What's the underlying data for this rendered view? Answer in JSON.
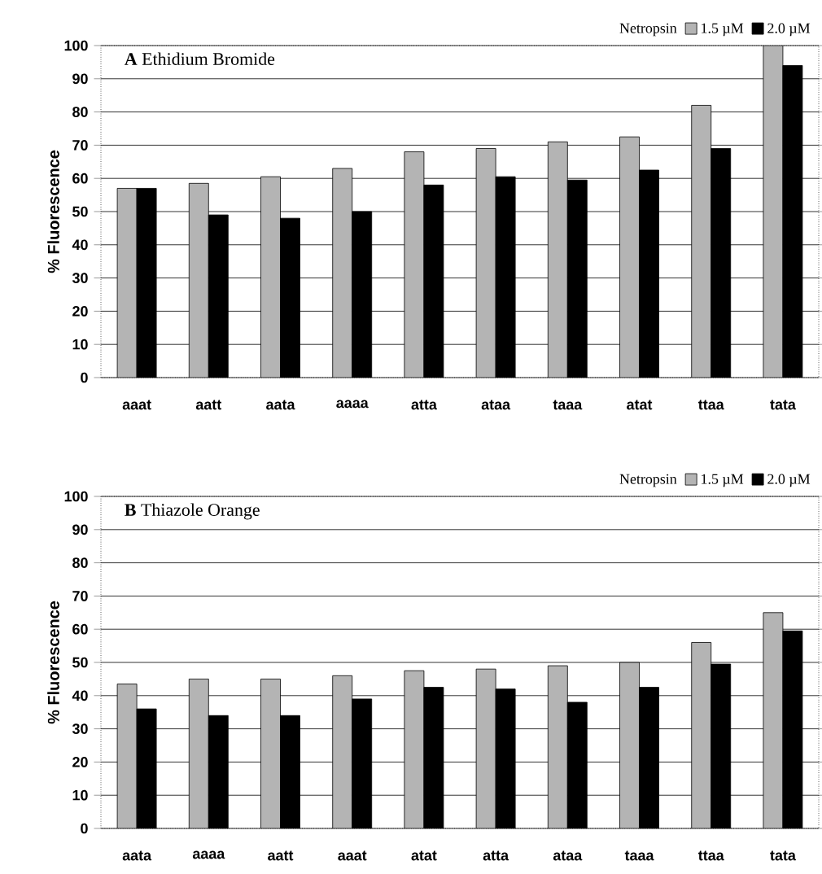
{
  "chart_data": [
    {
      "type": "bar",
      "title": "**A**   Ethidium Bromide",
      "ylabel": "% Fluorescence",
      "legend_title": "Netropsin",
      "legend": "top right",
      "grid": "y",
      "categories": [
        "aaat",
        "aatt",
        "aata",
        "aaaa",
        "atta",
        "ataa",
        "taaa",
        "atat",
        "ttaa",
        "tata"
      ],
      "series": [
        {
          "name": "1.5 µM",
          "color": "#b4b4b4",
          "values": [
            57,
            58.5,
            60.5,
            63,
            68,
            69,
            71,
            72.5,
            82,
            100
          ]
        },
        {
          "name": "2.0 µM",
          "color": "#000000",
          "values": [
            57,
            49,
            48,
            50,
            58,
            60.5,
            59.5,
            62.5,
            69,
            94
          ]
        }
      ],
      "ylim": [
        0,
        100
      ],
      "yticks": [
        0,
        10,
        20,
        30,
        40,
        50,
        60,
        70,
        80,
        90,
        100
      ]
    },
    {
      "type": "bar",
      "title": "**B**   Thiazole Orange",
      "ylabel": "% Fluorescence",
      "legend_title": "Netropsin",
      "legend": "top right",
      "grid": "y",
      "categories": [
        "aata",
        "aaaa",
        "aatt",
        "aaat",
        "atat",
        "atta",
        "ataa",
        "taaa",
        "ttaa",
        "tata"
      ],
      "series": [
        {
          "name": "1.5 µM",
          "color": "#b4b4b4",
          "values": [
            43.5,
            45,
            45,
            46,
            47.5,
            48,
            49,
            50,
            56,
            65
          ]
        },
        {
          "name": "2.0 µM",
          "color": "#000000",
          "values": [
            36,
            34,
            34,
            39,
            42.5,
            42,
            38,
            42.5,
            49.5,
            59.5
          ]
        }
      ],
      "ylim": [
        0,
        100
      ],
      "yticks": [
        0,
        10,
        20,
        30,
        40,
        50,
        60,
        70,
        80,
        90,
        100
      ]
    }
  ]
}
